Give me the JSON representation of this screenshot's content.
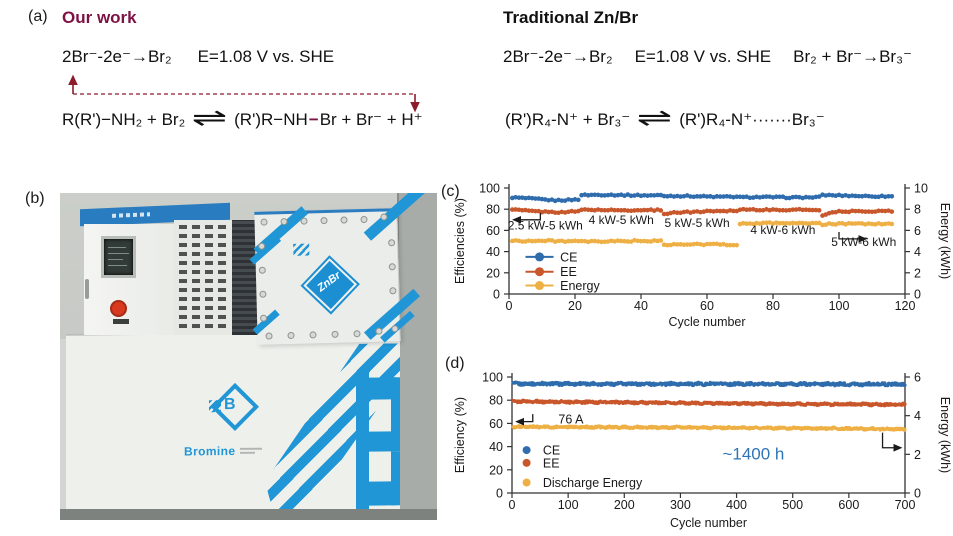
{
  "panel_a": {
    "label": "(a)",
    "our_work": {
      "title": "Our work",
      "title_color": "#7d1245",
      "arrow_color": "#8c1c2c",
      "eq1": "2Br⁻-2e⁻→Br₂",
      "eq1_potential": "E=1.08 V vs. SHE",
      "eq2_left": "R(R')−NH₂ + Br₂",
      "equilibrium": "⇌",
      "eq2_product_pre": "(R')R−NH",
      "eq2_product_bond": "−",
      "eq2_product_post": "Br + Br⁻ + H⁺"
    },
    "traditional": {
      "title": "Traditional Zn/Br",
      "eq1": "2Br⁻-2e⁻→Br₂",
      "eq1_potential": "E=1.08 V vs. SHE",
      "eq1_extra": "Br₂ + Br⁻→Br₃⁻",
      "eq2_left": "(R')R₄-N⁺ + Br₃⁻",
      "equilibrium": "⇌",
      "eq2_right": "(R')R₄-N⁺·······Br₃⁻"
    }
  },
  "panel_b": {
    "label": "(b)",
    "device": {
      "plate_logo": "ZnBr",
      "cabinet_logo": "B",
      "brand": "Bromine",
      "brand_blue": "#2196d6"
    }
  },
  "panel_c": {
    "label": "(c)"
  },
  "panel_d": {
    "label": "(d)"
  },
  "chart_data": [
    {
      "id": "c",
      "type": "scatter",
      "xlabel": "Cycle number",
      "ylabel_left": "Efficiencies (%)",
      "ylabel_right": "Energy (kWh)",
      "xlim": [
        0,
        120
      ],
      "xticks": [
        0,
        20,
        40,
        60,
        80,
        100,
        120
      ],
      "ylim_left": [
        0,
        100
      ],
      "yticks_left": [
        0,
        20,
        40,
        60,
        80,
        100
      ],
      "ylim_right": [
        0,
        10
      ],
      "yticks_right": [
        0,
        2,
        4,
        6,
        8,
        10
      ],
      "grid": false,
      "series": [
        {
          "name": "CE",
          "color": "#2e6cad",
          "axis": "left",
          "noise": 0.6,
          "anchors": [
            [
              1,
              91
            ],
            [
              8,
              89.5
            ],
            [
              14,
              88.4
            ],
            [
              20,
              89.2
            ],
            [
              21,
              89.4
            ],
            [
              22,
              93.4
            ],
            [
              46,
              93.2
            ],
            [
              47,
              92.4
            ],
            [
              69,
              91.8
            ],
            [
              70,
              91.2
            ],
            [
              94,
              91.3
            ],
            [
              95,
              93.4
            ],
            [
              97,
              92.9
            ],
            [
              116,
              92.2
            ]
          ]
        },
        {
          "name": "EE",
          "color": "#c8572b",
          "axis": "left",
          "noise": 0.6,
          "anchors": [
            [
              1,
              79.5
            ],
            [
              8,
              78.2
            ],
            [
              14,
              77.2
            ],
            [
              21,
              77.6
            ],
            [
              22,
              79.4
            ],
            [
              46,
              78.9
            ],
            [
              47,
              75.6
            ],
            [
              50,
              76.8
            ],
            [
              60,
              78.2
            ],
            [
              69,
              78.4
            ],
            [
              70,
              79.7
            ],
            [
              94,
              79.2
            ],
            [
              95,
              73.6
            ],
            [
              97,
              76.8
            ],
            [
              101,
              78.2
            ],
            [
              116,
              78
            ]
          ]
        },
        {
          "name": "Energy",
          "color": "#eeb044",
          "axis": "right",
          "noise": 0.07,
          "anchors": [
            [
              1,
              5.05
            ],
            [
              20,
              4.95
            ],
            [
              46,
              5.0
            ],
            [
              47,
              4.68
            ],
            [
              69,
              4.65
            ],
            [
              70,
              6.68
            ],
            [
              94,
              6.68
            ],
            [
              95,
              6.5
            ],
            [
              97,
              6.62
            ],
            [
              116,
              6.6
            ]
          ]
        }
      ],
      "legend": {
        "style": "line-dot",
        "marker_x": 5,
        "marker_x2": 13.5,
        "label_x": 15.5,
        "rows": [
          {
            "label": "CE",
            "y": 35
          },
          {
            "label": "EE",
            "y": 21
          },
          {
            "label": "Energy",
            "y": 8
          }
        ]
      },
      "annotations": [
        {
          "text": "2.5 kW-5 kWh",
          "x": 11,
          "y": 61,
          "size": 12
        },
        {
          "text": "4 kW-5 kWh",
          "x": 34,
          "y": 66,
          "size": 12
        },
        {
          "text": "5 kW-5 kWh",
          "x": 57,
          "y": 63,
          "size": 12
        },
        {
          "text": "4 kW-6 kWh",
          "x": 83,
          "y": 56.5,
          "size": 12
        },
        {
          "text": "5 kW-6 kWh",
          "x": 107.5,
          "y": 45.5,
          "size": 12
        }
      ],
      "arrows": [
        {
          "points": [
            [
              9.5,
              76.5
            ],
            [
              9.5,
              70
            ],
            [
              1.5,
              70
            ]
          ]
        },
        {
          "points": [
            [
              100,
              58.5
            ],
            [
              100,
              52
            ],
            [
              108,
              52
            ]
          ]
        }
      ]
    },
    {
      "id": "d",
      "type": "scatter",
      "xlabel": "Cycle number",
      "ylabel_left": "Efficiency (%)",
      "ylabel_right": "Energy (kWh)",
      "xlim": [
        0,
        700
      ],
      "xticks": [
        0,
        100,
        200,
        300,
        400,
        500,
        600,
        700
      ],
      "ylim_left": [
        0,
        100
      ],
      "yticks_left": [
        0,
        20,
        40,
        60,
        80,
        100
      ],
      "ylim_right": [
        0,
        6
      ],
      "yticks_right": [
        0,
        2,
        4,
        6
      ],
      "grid": false,
      "series": [
        {
          "name": "CE",
          "color": "#2e6cad",
          "axis": "left",
          "noise": 1.1,
          "anchors": [
            [
              2,
              94.2
            ],
            [
              350,
              94
            ],
            [
              700,
              93.8
            ]
          ]
        },
        {
          "name": "EE",
          "color": "#c8572b",
          "axis": "left",
          "noise": 0.9,
          "anchors": [
            [
              2,
              79
            ],
            [
              300,
              77.6
            ],
            [
              550,
              76.6
            ],
            [
              700,
              76.2
            ]
          ]
        },
        {
          "name": "Discharge Energy",
          "color": "#eeb044",
          "axis": "right",
          "noise": 0.05,
          "anchors": [
            [
              2,
              3.42
            ],
            [
              400,
              3.38
            ],
            [
              700,
              3.3
            ]
          ]
        }
      ],
      "legend": {
        "style": "dot",
        "marker_x": 26,
        "label_x": 55,
        "rows": [
          {
            "label": "CE",
            "y": 37
          },
          {
            "label": "EE",
            "y": 26
          },
          {
            "label": "Discharge Energy",
            "y": 9
          }
        ]
      },
      "annotations": [
        {
          "text": "76 A",
          "x": 105,
          "y": 60,
          "size": 12.5
        },
        {
          "text": "~1400 h",
          "x": 430,
          "y": 29,
          "size": 17,
          "color": "#2e75b6"
        }
      ],
      "arrows": [
        {
          "points": [
            [
              37,
              68
            ],
            [
              37,
              61.5
            ],
            [
              9,
              61.5
            ]
          ]
        },
        {
          "points": [
            [
              660,
              52
            ],
            [
              660,
              39
            ],
            [
              692,
              39
            ]
          ]
        }
      ]
    }
  ]
}
